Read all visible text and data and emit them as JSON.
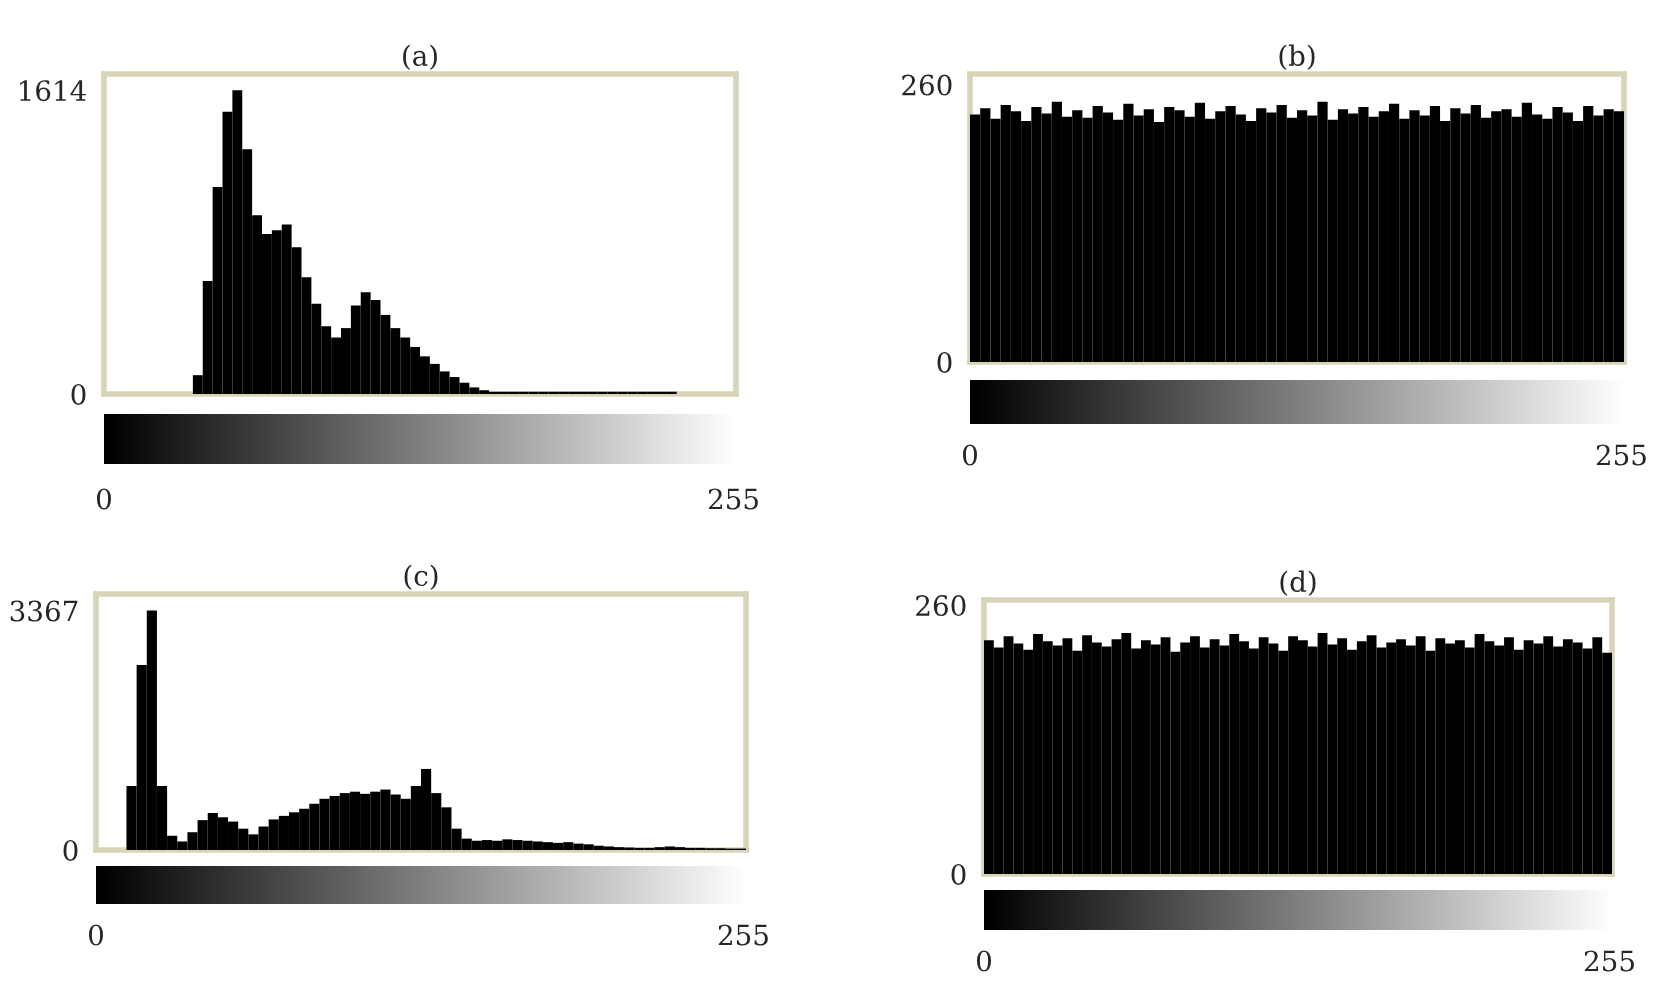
{
  "chart_data": [
    {
      "type": "histogram",
      "title": "(a)",
      "color": "#000000",
      "xlim": [
        0,
        256
      ],
      "xticks": [
        0,
        255
      ],
      "ylim": [
        0,
        1700
      ],
      "yticks": [
        0,
        1614
      ],
      "bins": [
        0,
        4,
        8,
        12,
        16,
        20,
        24,
        28,
        32,
        36,
        40,
        44,
        48,
        52,
        56,
        60,
        64,
        68,
        72,
        76,
        80,
        84,
        88,
        92,
        96,
        100,
        104,
        108,
        112,
        116,
        120,
        124,
        128,
        132,
        136,
        140,
        144,
        148,
        152,
        156,
        160,
        164,
        168,
        172,
        176,
        180,
        184,
        188,
        192,
        196,
        200,
        204,
        208,
        212,
        216,
        220,
        224,
        228,
        232,
        236,
        240,
        244,
        248,
        252,
        256
      ],
      "values": [
        0,
        0,
        0,
        0,
        0,
        0,
        0,
        0,
        0,
        100,
        600,
        1100,
        1500,
        1614,
        1300,
        950,
        850,
        870,
        900,
        780,
        620,
        480,
        360,
        300,
        350,
        470,
        540,
        500,
        420,
        350,
        300,
        250,
        200,
        160,
        120,
        90,
        60,
        35,
        20,
        12,
        12,
        12,
        12,
        12,
        12,
        12,
        12,
        12,
        12,
        12,
        12,
        12,
        12,
        12,
        12,
        12,
        12,
        12,
        0,
        0,
        0,
        0,
        0,
        0
      ]
    },
    {
      "type": "histogram",
      "title": "(b)",
      "color": "#000000",
      "xlim": [
        0,
        256
      ],
      "xticks": [
        0,
        255
      ],
      "ylim": [
        0,
        270
      ],
      "yticks": [
        0,
        260
      ],
      "bins": [
        0,
        4,
        8,
        12,
        16,
        20,
        24,
        28,
        32,
        36,
        40,
        44,
        48,
        52,
        56,
        60,
        64,
        68,
        72,
        76,
        80,
        84,
        88,
        92,
        96,
        100,
        104,
        108,
        112,
        116,
        120,
        124,
        128,
        132,
        136,
        140,
        144,
        148,
        152,
        156,
        160,
        164,
        168,
        172,
        176,
        180,
        184,
        188,
        192,
        196,
        200,
        204,
        208,
        212,
        216,
        220,
        224,
        228,
        232,
        236,
        240,
        244,
        248,
        252,
        256
      ],
      "values": [
        232,
        238,
        228,
        241,
        235,
        226,
        239,
        233,
        244,
        230,
        236,
        229,
        240,
        234,
        227,
        242,
        231,
        237,
        225,
        239,
        236,
        230,
        243,
        228,
        235,
        240,
        232,
        226,
        238,
        234,
        241,
        229,
        236,
        231,
        244,
        227,
        237,
        233,
        239,
        230,
        235,
        242,
        228,
        236,
        231,
        240,
        226,
        238,
        233,
        241,
        229,
        235,
        237,
        230,
        243,
        232,
        228,
        239,
        234,
        226,
        240,
        231,
        237,
        235
      ]
    },
    {
      "type": "histogram",
      "title": "(c)",
      "color": "#000000",
      "xlim": [
        0,
        256
      ],
      "xticks": [
        0,
        255
      ],
      "ylim": [
        0,
        3600
      ],
      "yticks": [
        0,
        3367
      ],
      "bins": [
        0,
        4,
        8,
        12,
        16,
        20,
        24,
        28,
        32,
        36,
        40,
        44,
        48,
        52,
        56,
        60,
        64,
        68,
        72,
        76,
        80,
        84,
        88,
        92,
        96,
        100,
        104,
        108,
        112,
        116,
        120,
        124,
        128,
        132,
        136,
        140,
        144,
        148,
        152,
        156,
        160,
        164,
        168,
        172,
        176,
        180,
        184,
        188,
        192,
        196,
        200,
        204,
        208,
        212,
        216,
        220,
        224,
        228,
        232,
        236,
        240,
        244,
        248,
        252,
        256
      ],
      "values": [
        0,
        0,
        0,
        900,
        2600,
        3367,
        900,
        200,
        120,
        250,
        420,
        520,
        460,
        400,
        300,
        220,
        330,
        430,
        480,
        530,
        580,
        650,
        720,
        760,
        800,
        820,
        790,
        820,
        850,
        780,
        720,
        900,
        1140,
        800,
        600,
        300,
        160,
        130,
        140,
        130,
        150,
        140,
        130,
        120,
        110,
        100,
        110,
        90,
        80,
        60,
        50,
        40,
        35,
        30,
        30,
        40,
        50,
        40,
        30,
        30,
        25,
        25,
        20,
        20
      ]
    },
    {
      "type": "histogram",
      "title": "(d)",
      "color": "#000000",
      "xlim": [
        0,
        256
      ],
      "xticks": [
        0,
        255
      ],
      "ylim": [
        0,
        265
      ],
      "yticks": [
        0,
        260
      ],
      "bins": [
        0,
        4,
        8,
        12,
        16,
        20,
        24,
        28,
        32,
        36,
        40,
        44,
        48,
        52,
        56,
        60,
        64,
        68,
        72,
        76,
        80,
        84,
        88,
        92,
        96,
        100,
        104,
        108,
        112,
        116,
        120,
        124,
        128,
        132,
        136,
        140,
        144,
        148,
        152,
        156,
        160,
        164,
        168,
        172,
        176,
        180,
        184,
        188,
        192,
        196,
        200,
        204,
        208,
        212,
        216,
        220,
        224,
        228,
        232,
        236,
        240,
        244,
        248,
        252,
        256
      ],
      "values": [
        226,
        219,
        230,
        223,
        217,
        232,
        225,
        221,
        228,
        216,
        231,
        224,
        220,
        227,
        233,
        218,
        226,
        222,
        229,
        215,
        224,
        230,
        219,
        227,
        221,
        232,
        225,
        218,
        229,
        223,
        216,
        230,
        226,
        220,
        233,
        222,
        228,
        217,
        225,
        231,
        219,
        224,
        227,
        221,
        230,
        216,
        228,
        223,
        226,
        219,
        232,
        225,
        221,
        229,
        217,
        226,
        223,
        230,
        220,
        227,
        224,
        218,
        229,
        214
      ]
    }
  ]
}
